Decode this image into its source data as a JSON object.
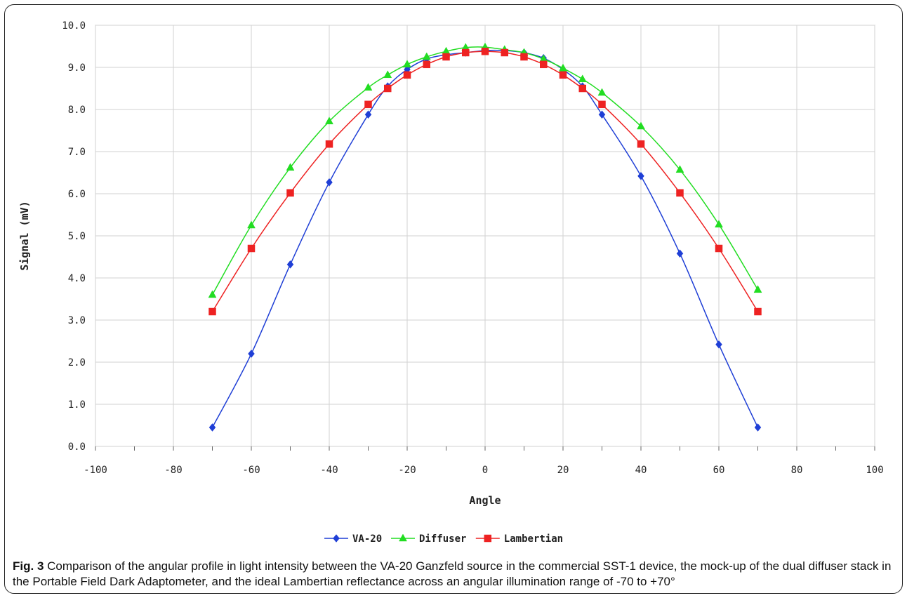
{
  "chart_data": {
    "type": "line",
    "title": "",
    "xlabel": "Angle",
    "ylabel": "Signal (mV)",
    "xlim": [
      -100,
      100
    ],
    "ylim": [
      0,
      10
    ],
    "xticks": [
      -100,
      -80,
      -60,
      -40,
      -20,
      0,
      20,
      40,
      60,
      80,
      100
    ],
    "yticks": [
      0,
      1,
      2,
      3,
      4,
      5,
      6,
      7,
      8,
      9,
      10
    ],
    "xtick_labels": [
      "-100",
      "-80",
      "-60",
      "-40",
      "-20",
      "0",
      "20",
      "40",
      "60",
      "80",
      "100"
    ],
    "ytick_labels": [
      "0.0",
      "1.0",
      "2.0",
      "3.0",
      "4.0",
      "5.0",
      "6.0",
      "7.0",
      "8.0",
      "9.0",
      "10.0"
    ],
    "grid": true,
    "legend_position": "bottom-center",
    "series": [
      {
        "name": "VA-20",
        "color": "#1f3fd6",
        "marker": "diamond",
        "x": [
          -70,
          -60,
          -50,
          -40,
          -30,
          -25,
          -20,
          -15,
          -10,
          -5,
          0,
          5,
          10,
          15,
          20,
          25,
          30,
          40,
          50,
          60,
          70
        ],
        "y": [
          0.45,
          2.2,
          4.32,
          6.27,
          7.88,
          8.55,
          8.95,
          9.2,
          9.3,
          9.35,
          9.4,
          9.4,
          9.35,
          9.22,
          8.95,
          8.55,
          7.88,
          6.42,
          4.58,
          2.42,
          0.45
        ]
      },
      {
        "name": "Diffuser",
        "color": "#22dd22",
        "marker": "triangle",
        "x": [
          -70,
          -60,
          -50,
          -40,
          -30,
          -25,
          -20,
          -15,
          -10,
          -5,
          0,
          5,
          10,
          15,
          20,
          25,
          30,
          40,
          50,
          60,
          70
        ],
        "y": [
          3.6,
          5.25,
          6.62,
          7.72,
          8.52,
          8.82,
          9.07,
          9.25,
          9.38,
          9.47,
          9.48,
          9.42,
          9.35,
          9.2,
          8.98,
          8.72,
          8.4,
          7.6,
          6.57,
          5.27,
          3.72
        ]
      },
      {
        "name": "Lambertian",
        "color": "#ee2222",
        "marker": "square",
        "x": [
          -70,
          -60,
          -50,
          -40,
          -30,
          -25,
          -20,
          -15,
          -10,
          -5,
          0,
          5,
          10,
          15,
          20,
          25,
          30,
          40,
          50,
          60,
          70
        ],
        "y": [
          3.2,
          4.7,
          6.02,
          7.18,
          8.12,
          8.5,
          8.82,
          9.07,
          9.25,
          9.35,
          9.38,
          9.35,
          9.25,
          9.07,
          8.82,
          8.5,
          8.12,
          7.18,
          6.02,
          4.7,
          3.2
        ]
      }
    ]
  },
  "caption": {
    "label": "Fig. 3",
    "text": " Comparison of the angular profile in light intensity between the VA-20 Ganzfeld source in the commercial SST-1 device, the mock-up of the dual diffuser stack in the Portable Field Dark Adaptometer, and the ideal Lambertian reflectance across an angular illumination range of -70 to +70°"
  }
}
